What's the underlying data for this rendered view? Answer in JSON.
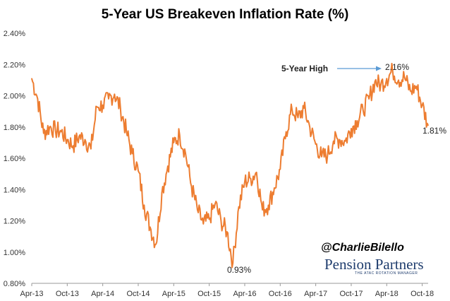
{
  "chart_data": {
    "type": "line",
    "title": "5-Year US Breakeven Inflation Rate (%)",
    "xlabel": "",
    "ylabel": "",
    "ylim": [
      0.8,
      2.4
    ],
    "yticks": [
      "0.80%",
      "1.00%",
      "1.20%",
      "1.40%",
      "1.60%",
      "1.80%",
      "2.00%",
      "2.20%",
      "2.40%"
    ],
    "xticks": [
      "Apr-13",
      "Oct-13",
      "Apr-14",
      "Oct-14",
      "Apr-15",
      "Oct-15",
      "Apr-16",
      "Oct-16",
      "Apr-17",
      "Oct-17",
      "Apr-18",
      "Oct-18"
    ],
    "grid": false,
    "color": "#ed7d31",
    "x": [
      "2013-04",
      "2013-05",
      "2013-06",
      "2013-07",
      "2013-08",
      "2013-09",
      "2013-10",
      "2013-11",
      "2013-12",
      "2014-01",
      "2014-02",
      "2014-03",
      "2014-04",
      "2014-05",
      "2014-06",
      "2014-07",
      "2014-08",
      "2014-09",
      "2014-10",
      "2014-11",
      "2014-12",
      "2015-01",
      "2015-02",
      "2015-03",
      "2015-04",
      "2015-05",
      "2015-06",
      "2015-07",
      "2015-08",
      "2015-09",
      "2015-10",
      "2015-11",
      "2015-12",
      "2016-01",
      "2016-02",
      "2016-03",
      "2016-04",
      "2016-05",
      "2016-06",
      "2016-07",
      "2016-08",
      "2016-09",
      "2016-10",
      "2016-11",
      "2016-12",
      "2017-01",
      "2017-02",
      "2017-03",
      "2017-04",
      "2017-05",
      "2017-06",
      "2017-07",
      "2017-08",
      "2017-09",
      "2017-10",
      "2017-11",
      "2017-12",
      "2018-01",
      "2018-02",
      "2018-03",
      "2018-04",
      "2018-05",
      "2018-06",
      "2018-07",
      "2018-08",
      "2018-09",
      "2018-10",
      "2018-11"
    ],
    "values": [
      2.11,
      1.98,
      1.76,
      1.8,
      1.78,
      1.77,
      1.72,
      1.68,
      1.74,
      1.72,
      1.66,
      1.93,
      1.94,
      1.98,
      2.01,
      1.92,
      1.77,
      1.63,
      1.52,
      1.3,
      1.16,
      1.05,
      1.38,
      1.55,
      1.7,
      1.75,
      1.63,
      1.42,
      1.27,
      1.18,
      1.21,
      1.31,
      1.2,
      1.13,
      0.93,
      1.29,
      1.45,
      1.47,
      1.51,
      1.27,
      1.3,
      1.41,
      1.53,
      1.77,
      1.91,
      1.86,
      1.92,
      1.8,
      1.69,
      1.61,
      1.62,
      1.71,
      1.72,
      1.71,
      1.79,
      1.84,
      1.91,
      1.98,
      2.09,
      2.07,
      2.11,
      2.16,
      2.1,
      2.12,
      2.03,
      2.06,
      1.94,
      1.81
    ],
    "annotations": {
      "high_label": "5-Year High",
      "high_value": "2.16%",
      "end_value": "1.81%",
      "low_value": "0.93%"
    }
  },
  "watermark": {
    "handle": "@CharlieBilello",
    "brand": "Pension Partners",
    "brand_sub": "THE ATAC ROTATION MANAGER"
  }
}
